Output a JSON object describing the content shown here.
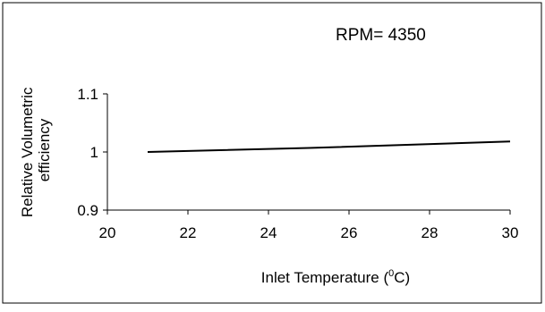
{
  "chart_data": {
    "type": "line",
    "title": "RPM= 4350",
    "xlabel": "Inlet Temperature (",
    "xlabel_sup": "0",
    "xlabel_end": "C)",
    "ylabel_line1": "Relative Volumetric",
    "ylabel_line2": "efficiency",
    "xlim": [
      20,
      30
    ],
    "ylim": [
      0.9,
      1.1
    ],
    "x_ticks": [
      20,
      22,
      24,
      26,
      28,
      30
    ],
    "y_ticks": [
      0.9,
      1,
      1.1
    ],
    "x_tick_labels": [
      "20",
      "22",
      "24",
      "26",
      "28",
      "30"
    ],
    "y_tick_labels": [
      "0.9",
      "1",
      "1.1"
    ],
    "grid": false,
    "series": [
      {
        "x": [
          21,
          25,
          30
        ],
        "y": [
          1.0,
          1.007,
          1.018
        ],
        "color": "#000000"
      }
    ]
  }
}
